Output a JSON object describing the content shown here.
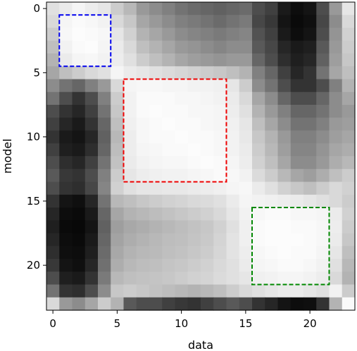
{
  "chart_data": {
    "type": "heatmap",
    "title": "",
    "xlabel": "data",
    "ylabel": "model",
    "colormap": "gray",
    "value_range": [
      0,
      1
    ],
    "xlim": [
      -0.5,
      23.5
    ],
    "ylim": [
      23.5,
      -0.5
    ],
    "x_ticks": [
      0,
      5,
      10,
      15,
      20
    ],
    "y_ticks": [
      0,
      5,
      10,
      15,
      20
    ],
    "rows": 24,
    "cols": 24,
    "matrix": [
      [
        0.88,
        0.92,
        0.96,
        0.93,
        0.9,
        0.8,
        0.72,
        0.6,
        0.55,
        0.5,
        0.45,
        0.42,
        0.4,
        0.38,
        0.4,
        0.42,
        0.3,
        0.25,
        0.1,
        0.05,
        0.08,
        0.3,
        0.6,
        0.9
      ],
      [
        0.85,
        0.96,
        0.98,
        0.97,
        0.95,
        0.85,
        0.78,
        0.65,
        0.6,
        0.55,
        0.5,
        0.48,
        0.45,
        0.42,
        0.45,
        0.48,
        0.28,
        0.22,
        0.08,
        0.04,
        0.06,
        0.28,
        0.55,
        0.85
      ],
      [
        0.8,
        0.97,
        0.99,
        0.98,
        0.97,
        0.9,
        0.82,
        0.7,
        0.65,
        0.6,
        0.55,
        0.52,
        0.5,
        0.48,
        0.5,
        0.52,
        0.32,
        0.25,
        0.1,
        0.05,
        0.08,
        0.3,
        0.58,
        0.82
      ],
      [
        0.75,
        0.95,
        0.98,
        0.99,
        0.96,
        0.92,
        0.85,
        0.75,
        0.7,
        0.65,
        0.6,
        0.58,
        0.55,
        0.52,
        0.55,
        0.55,
        0.35,
        0.28,
        0.15,
        0.1,
        0.12,
        0.35,
        0.6,
        0.8
      ],
      [
        0.7,
        0.92,
        0.96,
        0.97,
        0.95,
        0.93,
        0.88,
        0.8,
        0.75,
        0.7,
        0.65,
        0.62,
        0.6,
        0.58,
        0.6,
        0.6,
        0.4,
        0.3,
        0.18,
        0.12,
        0.15,
        0.38,
        0.62,
        0.78
      ],
      [
        0.65,
        0.75,
        0.8,
        0.85,
        0.88,
        0.96,
        0.92,
        0.9,
        0.88,
        0.86,
        0.84,
        0.82,
        0.8,
        0.78,
        0.75,
        0.7,
        0.5,
        0.4,
        0.25,
        0.15,
        0.2,
        0.45,
        0.65,
        0.75
      ],
      [
        0.55,
        0.45,
        0.4,
        0.5,
        0.6,
        0.85,
        0.96,
        0.97,
        0.97,
        0.96,
        0.96,
        0.95,
        0.95,
        0.94,
        0.9,
        0.8,
        0.55,
        0.45,
        0.3,
        0.2,
        0.2,
        0.3,
        0.5,
        0.7
      ],
      [
        0.45,
        0.3,
        0.2,
        0.3,
        0.5,
        0.8,
        0.95,
        0.98,
        0.98,
        0.98,
        0.97,
        0.97,
        0.96,
        0.95,
        0.92,
        0.85,
        0.65,
        0.55,
        0.4,
        0.3,
        0.3,
        0.4,
        0.55,
        0.65
      ],
      [
        0.3,
        0.2,
        0.15,
        0.25,
        0.45,
        0.78,
        0.95,
        0.98,
        0.99,
        0.98,
        0.98,
        0.97,
        0.97,
        0.96,
        0.93,
        0.88,
        0.7,
        0.6,
        0.5,
        0.4,
        0.4,
        0.45,
        0.55,
        0.6
      ],
      [
        0.25,
        0.15,
        0.1,
        0.2,
        0.4,
        0.75,
        0.94,
        0.97,
        0.98,
        0.99,
        0.98,
        0.98,
        0.97,
        0.96,
        0.94,
        0.9,
        0.75,
        0.65,
        0.55,
        0.45,
        0.45,
        0.5,
        0.6,
        0.62
      ],
      [
        0.2,
        0.1,
        0.08,
        0.15,
        0.38,
        0.72,
        0.93,
        0.97,
        0.98,
        0.98,
        0.99,
        0.98,
        0.98,
        0.97,
        0.95,
        0.91,
        0.78,
        0.7,
        0.6,
        0.5,
        0.5,
        0.55,
        0.62,
        0.65
      ],
      [
        0.25,
        0.12,
        0.1,
        0.18,
        0.4,
        0.74,
        0.93,
        0.96,
        0.97,
        0.98,
        0.98,
        0.99,
        0.98,
        0.97,
        0.95,
        0.92,
        0.8,
        0.72,
        0.62,
        0.52,
        0.52,
        0.58,
        0.65,
        0.68
      ],
      [
        0.3,
        0.18,
        0.15,
        0.25,
        0.45,
        0.76,
        0.92,
        0.95,
        0.96,
        0.97,
        0.97,
        0.98,
        0.99,
        0.98,
        0.96,
        0.93,
        0.82,
        0.75,
        0.65,
        0.55,
        0.55,
        0.6,
        0.68,
        0.72
      ],
      [
        0.35,
        0.22,
        0.2,
        0.3,
        0.5,
        0.8,
        0.9,
        0.93,
        0.94,
        0.95,
        0.95,
        0.96,
        0.97,
        0.98,
        0.97,
        0.95,
        0.86,
        0.8,
        0.72,
        0.65,
        0.62,
        0.68,
        0.75,
        0.8
      ],
      [
        0.3,
        0.2,
        0.18,
        0.28,
        0.52,
        0.82,
        0.88,
        0.9,
        0.9,
        0.91,
        0.91,
        0.92,
        0.93,
        0.94,
        0.96,
        0.97,
        0.92,
        0.88,
        0.82,
        0.78,
        0.75,
        0.8,
        0.85,
        0.82
      ],
      [
        0.2,
        0.08,
        0.06,
        0.15,
        0.45,
        0.72,
        0.75,
        0.78,
        0.8,
        0.82,
        0.83,
        0.85,
        0.86,
        0.88,
        0.92,
        0.96,
        0.95,
        0.94,
        0.93,
        0.92,
        0.9,
        0.88,
        0.85,
        0.8
      ],
      [
        0.15,
        0.05,
        0.04,
        0.1,
        0.4,
        0.65,
        0.7,
        0.72,
        0.74,
        0.76,
        0.78,
        0.8,
        0.82,
        0.85,
        0.9,
        0.95,
        0.97,
        0.98,
        0.98,
        0.97,
        0.97,
        0.96,
        0.92,
        0.82
      ],
      [
        0.12,
        0.04,
        0.03,
        0.08,
        0.38,
        0.62,
        0.66,
        0.68,
        0.7,
        0.72,
        0.74,
        0.76,
        0.78,
        0.82,
        0.88,
        0.94,
        0.98,
        0.99,
        0.99,
        0.98,
        0.98,
        0.97,
        0.93,
        0.8
      ],
      [
        0.15,
        0.05,
        0.04,
        0.1,
        0.4,
        0.64,
        0.68,
        0.7,
        0.72,
        0.74,
        0.75,
        0.77,
        0.79,
        0.83,
        0.89,
        0.94,
        0.98,
        0.99,
        0.99,
        0.99,
        0.98,
        0.97,
        0.92,
        0.78
      ],
      [
        0.18,
        0.06,
        0.05,
        0.12,
        0.42,
        0.66,
        0.7,
        0.72,
        0.73,
        0.75,
        0.76,
        0.78,
        0.8,
        0.84,
        0.89,
        0.93,
        0.97,
        0.98,
        0.99,
        0.98,
        0.98,
        0.96,
        0.9,
        0.75
      ],
      [
        0.22,
        0.08,
        0.06,
        0.15,
        0.44,
        0.68,
        0.72,
        0.74,
        0.75,
        0.77,
        0.78,
        0.8,
        0.82,
        0.85,
        0.88,
        0.92,
        0.96,
        0.97,
        0.98,
        0.98,
        0.97,
        0.95,
        0.88,
        0.72
      ],
      [
        0.3,
        0.12,
        0.1,
        0.2,
        0.48,
        0.72,
        0.75,
        0.76,
        0.77,
        0.78,
        0.8,
        0.82,
        0.83,
        0.86,
        0.88,
        0.9,
        0.94,
        0.95,
        0.96,
        0.96,
        0.95,
        0.93,
        0.85,
        0.7
      ],
      [
        0.45,
        0.2,
        0.18,
        0.3,
        0.55,
        0.78,
        0.8,
        0.78,
        0.76,
        0.74,
        0.72,
        0.7,
        0.72,
        0.75,
        0.8,
        0.85,
        0.88,
        0.9,
        0.92,
        0.92,
        0.9,
        0.88,
        0.95,
        0.8
      ],
      [
        0.85,
        0.6,
        0.55,
        0.65,
        0.8,
        0.7,
        0.35,
        0.3,
        0.3,
        0.25,
        0.22,
        0.2,
        0.25,
        0.3,
        0.35,
        0.3,
        0.2,
        0.15,
        0.08,
        0.05,
        0.06,
        0.2,
        0.7,
        0.98
      ]
    ],
    "annotations": [
      {
        "shape": "dashed-rectangle",
        "color": "#0000ee",
        "x_range": [
          0.5,
          4.5
        ],
        "y_range": [
          0.5,
          4.5
        ]
      },
      {
        "shape": "dashed-rectangle",
        "color": "#ee0000",
        "x_range": [
          5.5,
          13.5
        ],
        "y_range": [
          5.5,
          13.5
        ]
      },
      {
        "shape": "dashed-rectangle",
        "color": "#008800",
        "x_range": [
          15.5,
          21.5
        ],
        "y_range": [
          15.5,
          21.5
        ]
      }
    ]
  }
}
